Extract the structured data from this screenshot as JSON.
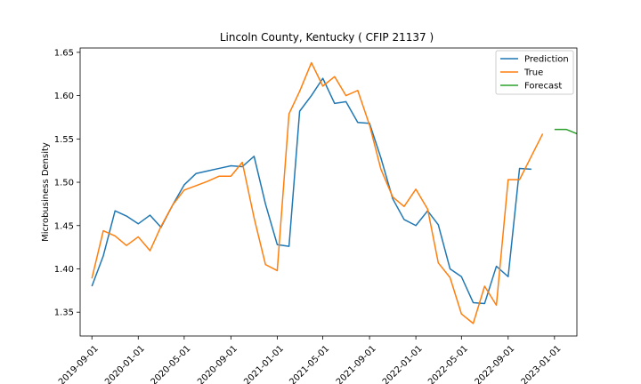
{
  "chart_data": {
    "type": "line",
    "title": "Lincoln County, Kentucky ( CFIP 21137 )",
    "xlabel": "",
    "ylabel": "Microbusiness Density",
    "ylim": [
      1.3225,
      1.655
    ],
    "xlim": [
      "2019-08-01",
      "2023-03-01"
    ],
    "x_ticks": [
      "2019-09-01",
      "2020-01-01",
      "2020-05-01",
      "2020-09-01",
      "2021-01-01",
      "2021-05-01",
      "2021-09-01",
      "2022-01-01",
      "2022-05-01",
      "2022-09-01",
      "2023-01-01"
    ],
    "y_ticks": [
      1.35,
      1.4,
      1.45,
      1.5,
      1.55,
      1.6,
      1.65
    ],
    "y_tick_labels": [
      "1.35",
      "1.40",
      "1.45",
      "1.50",
      "1.55",
      "1.60",
      "1.65"
    ],
    "grid": false,
    "legend_position": "top-right",
    "series": [
      {
        "name": "Prediction",
        "color": "#1f77b4",
        "x": [
          "2019-09-01",
          "2019-10-01",
          "2019-11-01",
          "2019-12-01",
          "2020-01-01",
          "2020-02-01",
          "2020-03-01",
          "2020-04-01",
          "2020-05-01",
          "2020-06-01",
          "2020-07-01",
          "2020-08-01",
          "2020-09-01",
          "2020-10-01",
          "2020-11-01",
          "2020-12-01",
          "2021-01-01",
          "2021-02-01",
          "2021-03-01",
          "2021-04-01",
          "2021-05-01",
          "2021-06-01",
          "2021-07-01",
          "2021-08-01",
          "2021-09-01",
          "2021-10-01",
          "2021-11-01",
          "2021-12-01",
          "2022-01-01",
          "2022-02-01",
          "2022-03-01",
          "2022-04-01",
          "2022-05-01",
          "2022-06-01",
          "2022-07-01",
          "2022-08-01",
          "2022-09-01",
          "2022-10-01",
          "2022-11-01"
        ],
        "values": [
          1.38,
          1.415,
          1.467,
          1.461,
          1.452,
          1.462,
          1.448,
          1.474,
          1.497,
          1.51,
          1.513,
          1.516,
          1.519,
          1.518,
          1.53,
          1.475,
          1.428,
          1.426,
          1.582,
          1.6,
          1.62,
          1.591,
          1.593,
          1.569,
          1.568,
          1.528,
          1.481,
          1.457,
          1.45,
          1.467,
          1.451,
          1.4,
          1.391,
          1.361,
          1.36,
          1.403,
          1.391,
          1.516,
          1.515
        ]
      },
      {
        "name": "True",
        "color": "#ff7f0e",
        "x": [
          "2019-09-01",
          "2019-10-01",
          "2019-11-01",
          "2019-12-01",
          "2020-01-01",
          "2020-02-01",
          "2020-03-01",
          "2020-04-01",
          "2020-05-01",
          "2020-06-01",
          "2020-07-01",
          "2020-08-01",
          "2020-09-01",
          "2020-10-01",
          "2020-11-01",
          "2020-12-01",
          "2021-01-01",
          "2021-02-01",
          "2021-03-01",
          "2021-04-01",
          "2021-05-01",
          "2021-06-01",
          "2021-07-01",
          "2021-08-01",
          "2021-09-01",
          "2021-10-01",
          "2021-11-01",
          "2021-12-01",
          "2022-01-01",
          "2022-02-01",
          "2022-03-01",
          "2022-04-01",
          "2022-05-01",
          "2022-06-01",
          "2022-07-01",
          "2022-08-01",
          "2022-09-01",
          "2022-10-01",
          "2022-11-01",
          "2022-12-01"
        ],
        "values": [
          1.389,
          1.444,
          1.438,
          1.427,
          1.437,
          1.421,
          1.449,
          1.474,
          1.491,
          1.496,
          1.501,
          1.507,
          1.507,
          1.523,
          1.459,
          1.405,
          1.398,
          1.579,
          1.605,
          1.638,
          1.611,
          1.622,
          1.6,
          1.606,
          1.566,
          1.515,
          1.483,
          1.472,
          1.492,
          1.469,
          1.407,
          1.39,
          1.348,
          1.337,
          1.38,
          1.358,
          1.503,
          1.503,
          1.53,
          1.556
        ]
      },
      {
        "name": "Forecast",
        "color": "#2ca02c",
        "x": [
          "2023-01-01",
          "2023-02-01",
          "2023-03-01"
        ],
        "values": [
          1.561,
          1.561,
          1.556
        ]
      }
    ]
  }
}
